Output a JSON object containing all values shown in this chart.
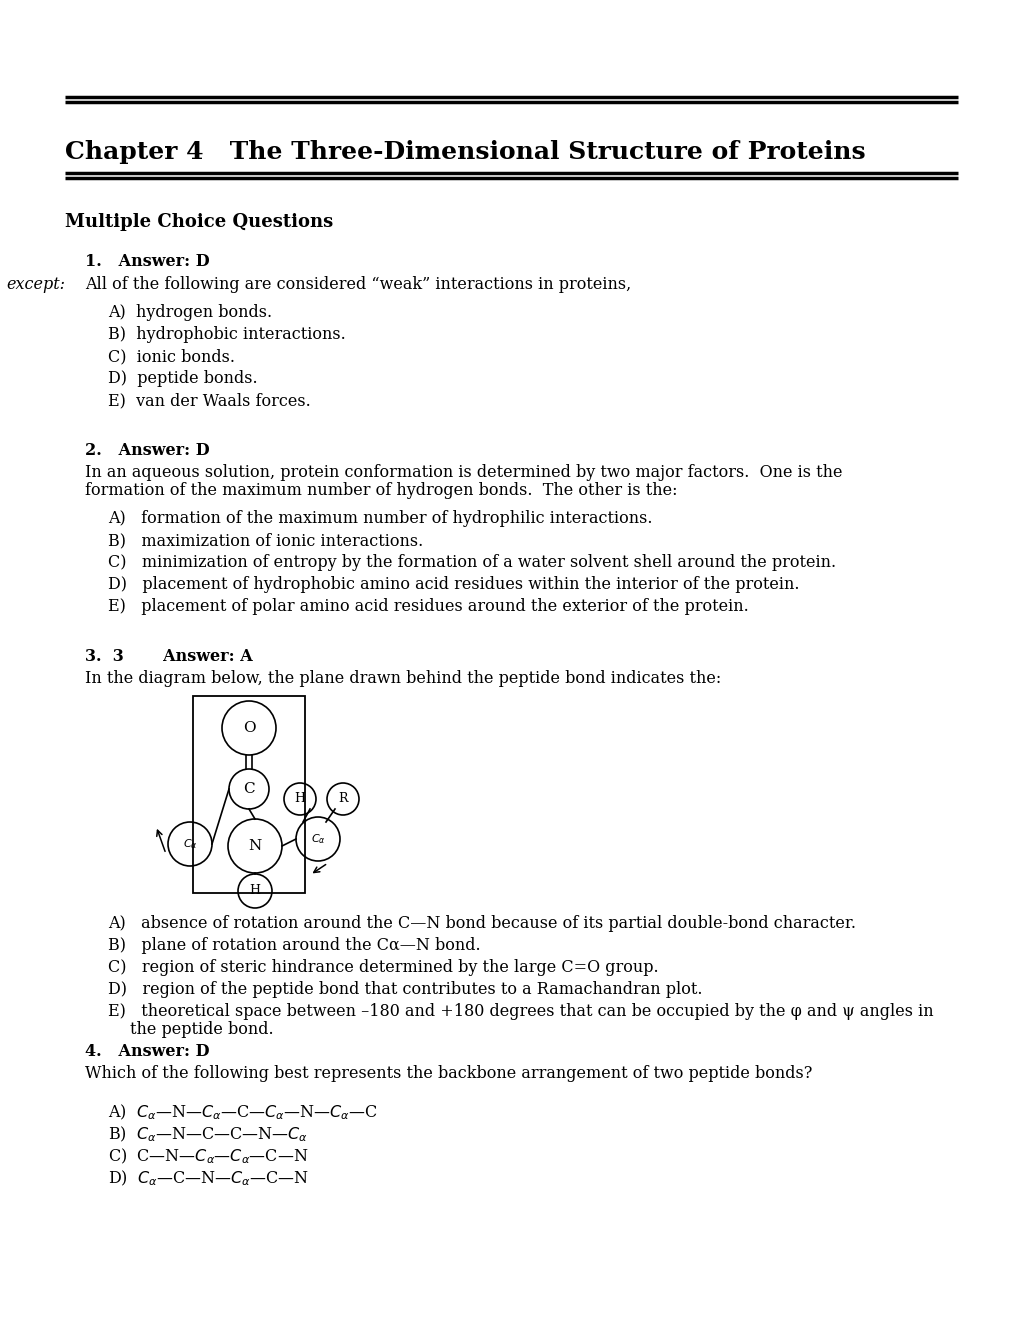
{
  "title": "Chapter 4   The Three-Dimensional Structure of Proteins",
  "section": "Multiple Choice Questions",
  "bg_color": "#ffffff",
  "q1_header": "1.   Answer: D",
  "q1_text_main": "All of the following are considered “weak” interactions in proteins, ",
  "q1_text_italic": "except:",
  "q1_choices": [
    "A)  hydrogen bonds.",
    "B)  hydrophobic interactions.",
    "C)  ionic bonds.",
    "D)  peptide bonds.",
    "E)  van der Waals forces."
  ],
  "q2_header": "2.   Answer: D",
  "q2_line1": "In an aqueous solution, protein conformation is determined by two major factors.  One is the",
  "q2_line2": "formation of the maximum number of hydrogen bonds.  The other is the:",
  "q2_choices": [
    "A)   formation of the maximum number of hydrophilic interactions.",
    "B)   maximization of ionic interactions.",
    "C)   minimization of entropy by the formation of a water solvent shell around the protein.",
    "D)   placement of hydrophobic amino acid residues within the interior of the protein.",
    "E)   placement of polar amino acid residues around the exterior of the protein."
  ],
  "q3_header": "3.  3       Answer: A",
  "q3_text": "In the diagram below, the plane drawn behind the peptide bond indicates the:",
  "q3_A": "A)   absence of rotation around the C—N bond because of its partial double-bond character.",
  "q3_B": "B)   plane of rotation around the Cα—N bond.",
  "q3_C": "C)   region of steric hindrance determined by the large C=O group.",
  "q3_D": "D)   region of the peptide bond that contributes to a Ramachandran plot.",
  "q3_E1": "E)   theoretical space between –180 and +180 degrees that can be occupied by the φ and ψ angles in",
  "q3_E2": "      the peptide bond.",
  "q4_header": "4.   Answer: D",
  "q4_text": "Which of the following best represents the backbone arrangement of two peptide bonds?",
  "q4_A": "A)  $C_\\alpha$—N—$C_\\alpha$—C—$C_\\alpha$—N—$C_\\alpha$—C",
  "q4_B": "B)  $C_\\alpha$—N—C—C—N—$C_\\alpha$",
  "q4_C": "C)  C—N—$C_\\alpha$—$C_\\alpha$—C—N",
  "q4_D": "D)  $C_\\alpha$—C—N—$C_\\alpha$—C—N"
}
